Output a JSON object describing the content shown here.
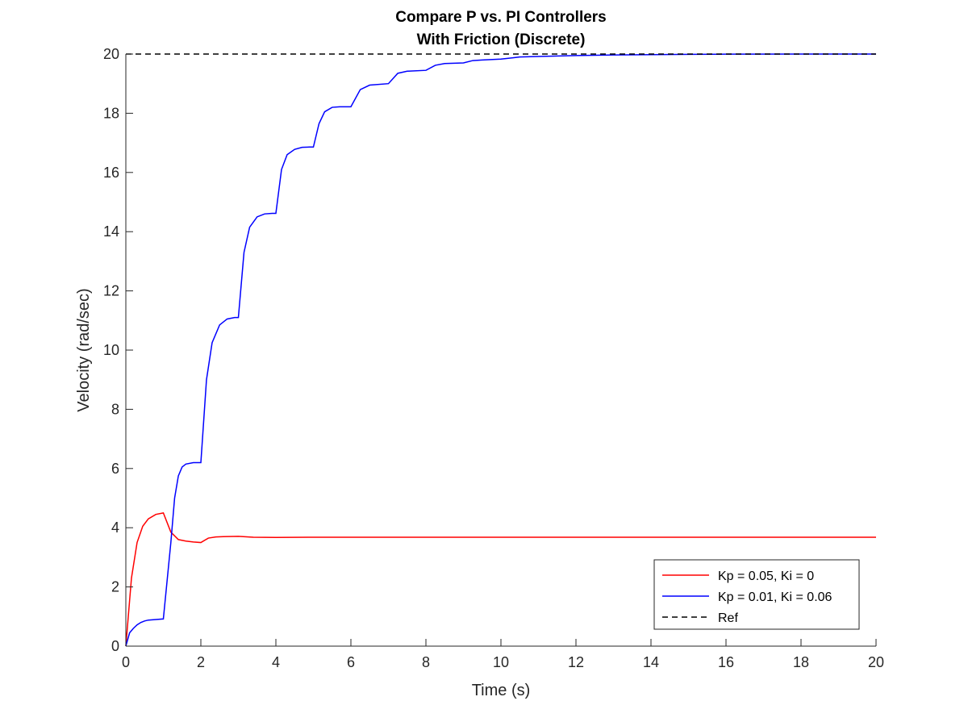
{
  "chart_data": {
    "type": "line",
    "title": "Compare P vs. PI Controllers",
    "subtitle": "With Friction (Discrete)",
    "xlabel": "Time (s)",
    "ylabel": "Velocity (rad/sec)",
    "xlim": [
      0,
      20
    ],
    "ylim": [
      0,
      20
    ],
    "xticks": [
      "0",
      "2",
      "4",
      "6",
      "8",
      "10",
      "12",
      "14",
      "16",
      "18",
      "20"
    ],
    "yticks": [
      "0",
      "2",
      "4",
      "6",
      "8",
      "10",
      "12",
      "14",
      "16",
      "18",
      "20"
    ],
    "grid": false,
    "legend_position": "bottom-right",
    "series": [
      {
        "name": "Kp = 0.05, Ki = 0",
        "color": "#ff0000",
        "style": "solid",
        "x": [
          0,
          0.15,
          0.3,
          0.45,
          0.6,
          0.8,
          1.0,
          1.2,
          1.4,
          1.6,
          1.8,
          2.0,
          2.2,
          2.4,
          2.6,
          3.0,
          3.4,
          4.0,
          5.0,
          10.0,
          20.0
        ],
        "y": [
          0,
          2.3,
          3.5,
          4.05,
          4.3,
          4.45,
          4.5,
          3.85,
          3.6,
          3.55,
          3.52,
          3.5,
          3.65,
          3.69,
          3.7,
          3.71,
          3.68,
          3.67,
          3.68,
          3.68,
          3.68
        ]
      },
      {
        "name": "Kp = 0.01, Ki = 0.06",
        "color": "#0000ff",
        "style": "solid",
        "x": [
          0,
          0.1,
          0.2,
          0.3,
          0.4,
          0.5,
          0.6,
          0.8,
          1.0,
          1.2,
          1.3,
          1.4,
          1.5,
          1.6,
          1.8,
          2.0,
          2.15,
          2.3,
          2.5,
          2.7,
          2.9,
          3.0,
          3.15,
          3.3,
          3.5,
          3.7,
          3.9,
          4.0,
          4.15,
          4.3,
          4.5,
          4.7,
          4.9,
          5.0,
          5.15,
          5.3,
          5.5,
          5.7,
          5.9,
          6.0,
          6.25,
          6.5,
          7.0,
          7.25,
          7.5,
          8.0,
          8.25,
          8.5,
          9.0,
          9.25,
          9.5,
          10.0,
          10.5,
          11.0,
          12.0,
          13.0,
          14.0,
          15.0,
          16.0,
          18.0,
          20.0
        ],
        "y": [
          0,
          0.45,
          0.6,
          0.72,
          0.8,
          0.85,
          0.88,
          0.9,
          0.92,
          3.5,
          5.0,
          5.75,
          6.05,
          6.15,
          6.2,
          6.2,
          9.0,
          10.25,
          10.85,
          11.05,
          11.1,
          11.1,
          13.3,
          14.15,
          14.5,
          14.6,
          14.62,
          14.62,
          16.1,
          16.6,
          16.78,
          16.85,
          16.86,
          16.86,
          17.65,
          18.05,
          18.2,
          18.22,
          18.22,
          18.22,
          18.8,
          18.95,
          19.0,
          19.35,
          19.42,
          19.45,
          19.62,
          19.68,
          19.7,
          19.78,
          19.8,
          19.83,
          19.9,
          19.92,
          19.95,
          19.97,
          19.98,
          19.99,
          19.995,
          20.0,
          20.0
        ]
      },
      {
        "name": "Ref",
        "color": "#000000",
        "style": "dashed",
        "x": [
          0,
          20
        ],
        "y": [
          20,
          20
        ]
      }
    ]
  }
}
